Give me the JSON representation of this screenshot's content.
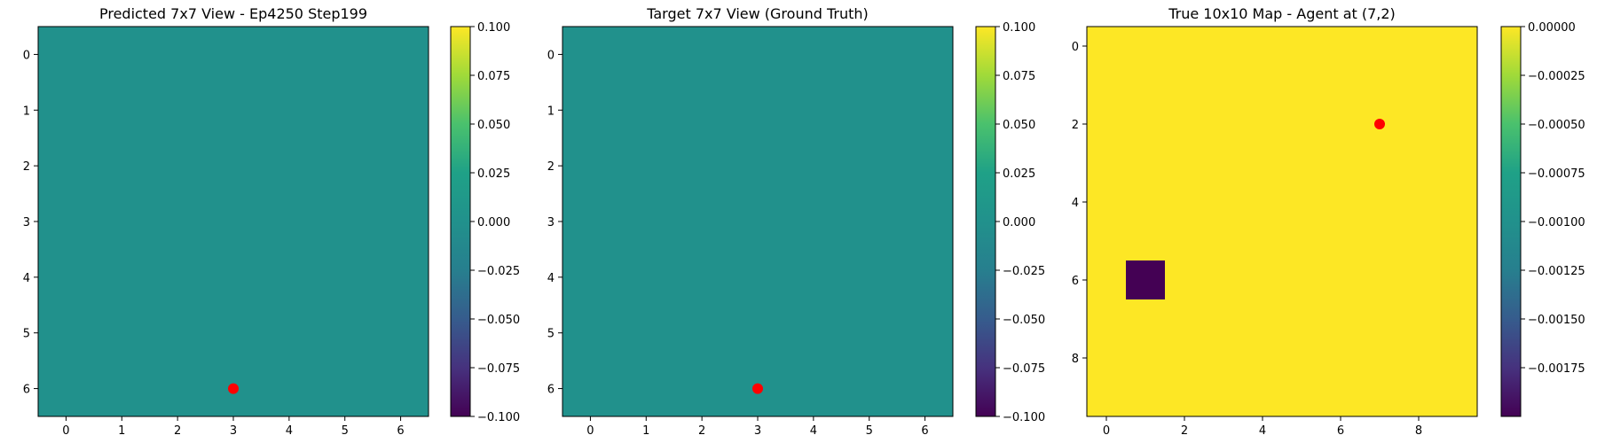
{
  "chart_data": [
    {
      "type": "heatmap",
      "title": "Predicted 7x7 View - Ep4250 Step199",
      "grid_size": [
        7,
        7
      ],
      "x_ticks": [
        0,
        1,
        2,
        3,
        4,
        5,
        6
      ],
      "y_ticks": [
        0,
        1,
        2,
        3,
        4,
        5,
        6
      ],
      "values": [
        [
          0,
          0,
          0,
          0,
          0,
          0,
          0
        ],
        [
          0,
          0,
          0,
          0,
          0,
          0,
          0
        ],
        [
          0,
          0,
          0,
          0,
          0,
          0,
          0
        ],
        [
          0,
          0,
          0,
          0,
          0,
          0,
          0
        ],
        [
          0,
          0,
          0,
          0,
          0,
          0,
          0
        ],
        [
          0,
          0,
          0,
          0,
          0,
          0,
          0
        ],
        [
          0,
          0,
          0,
          0,
          0,
          0,
          0
        ]
      ],
      "vmin": -0.1,
      "vmax": 0.1,
      "colormap": "viridis",
      "colorbar_ticks": [
        "0.100",
        "0.075",
        "0.050",
        "0.025",
        "0.000",
        "−0.025",
        "−0.050",
        "−0.075",
        "−0.100"
      ],
      "colorbar_tick_values": [
        0.1,
        0.075,
        0.05,
        0.025,
        0.0,
        -0.025,
        -0.05,
        -0.075,
        -0.1
      ],
      "marker": {
        "x": 3,
        "y": 6,
        "color": "#ff0000"
      }
    },
    {
      "type": "heatmap",
      "title": "Target 7x7 View (Ground Truth)",
      "grid_size": [
        7,
        7
      ],
      "x_ticks": [
        0,
        1,
        2,
        3,
        4,
        5,
        6
      ],
      "y_ticks": [
        0,
        1,
        2,
        3,
        4,
        5,
        6
      ],
      "values": [
        [
          0,
          0,
          0,
          0,
          0,
          0,
          0
        ],
        [
          0,
          0,
          0,
          0,
          0,
          0,
          0
        ],
        [
          0,
          0,
          0,
          0,
          0,
          0,
          0
        ],
        [
          0,
          0,
          0,
          0,
          0,
          0,
          0
        ],
        [
          0,
          0,
          0,
          0,
          0,
          0,
          0
        ],
        [
          0,
          0,
          0,
          0,
          0,
          0,
          0
        ],
        [
          0,
          0,
          0,
          0,
          0,
          0,
          0
        ]
      ],
      "vmin": -0.1,
      "vmax": 0.1,
      "colormap": "viridis",
      "colorbar_ticks": [
        "0.100",
        "0.075",
        "0.050",
        "0.025",
        "0.000",
        "−0.025",
        "−0.050",
        "−0.075",
        "−0.100"
      ],
      "colorbar_tick_values": [
        0.1,
        0.075,
        0.05,
        0.025,
        0.0,
        -0.025,
        -0.05,
        -0.075,
        -0.1
      ],
      "marker": {
        "x": 3,
        "y": 6,
        "color": "#ff0000"
      }
    },
    {
      "type": "heatmap",
      "title": "True 10x10 Map - Agent at (7,2)",
      "grid_size": [
        10,
        10
      ],
      "x_ticks": [
        0,
        2,
        4,
        6,
        8
      ],
      "y_ticks": [
        0,
        2,
        4,
        6,
        8
      ],
      "values": [
        [
          0,
          0,
          0,
          0,
          0,
          0,
          0,
          0,
          0,
          0
        ],
        [
          0,
          0,
          0,
          0,
          0,
          0,
          0,
          0,
          0,
          0
        ],
        [
          0,
          0,
          0,
          0,
          0,
          0,
          0,
          0,
          0,
          0
        ],
        [
          0,
          0,
          0,
          0,
          0,
          0,
          0,
          0,
          0,
          0
        ],
        [
          0,
          0,
          0,
          0,
          0,
          0,
          0,
          0,
          0,
          0
        ],
        [
          0,
          0,
          0,
          0,
          0,
          0,
          0,
          0,
          0,
          0
        ],
        [
          0,
          -0.002,
          0,
          0,
          0,
          0,
          0,
          0,
          0,
          0
        ],
        [
          0,
          0,
          0,
          0,
          0,
          0,
          0,
          0,
          0,
          0
        ],
        [
          0,
          0,
          0,
          0,
          0,
          0,
          0,
          0,
          0,
          0
        ],
        [
          0,
          0,
          0,
          0,
          0,
          0,
          0,
          0,
          0,
          0
        ]
      ],
      "vmin": -0.002,
      "vmax": 0.0,
      "colormap": "viridis",
      "colorbar_ticks": [
        "0.00000",
        "−0.00025",
        "−0.00050",
        "−0.00075",
        "−0.00100",
        "−0.00125",
        "−0.00150",
        "−0.00175"
      ],
      "colorbar_tick_values": [
        0.0,
        -0.00025,
        -0.0005,
        -0.00075,
        -0.001,
        -0.00125,
        -0.0015,
        -0.00175
      ],
      "marker": {
        "x": 7,
        "y": 2,
        "color": "#ff0000"
      }
    }
  ]
}
